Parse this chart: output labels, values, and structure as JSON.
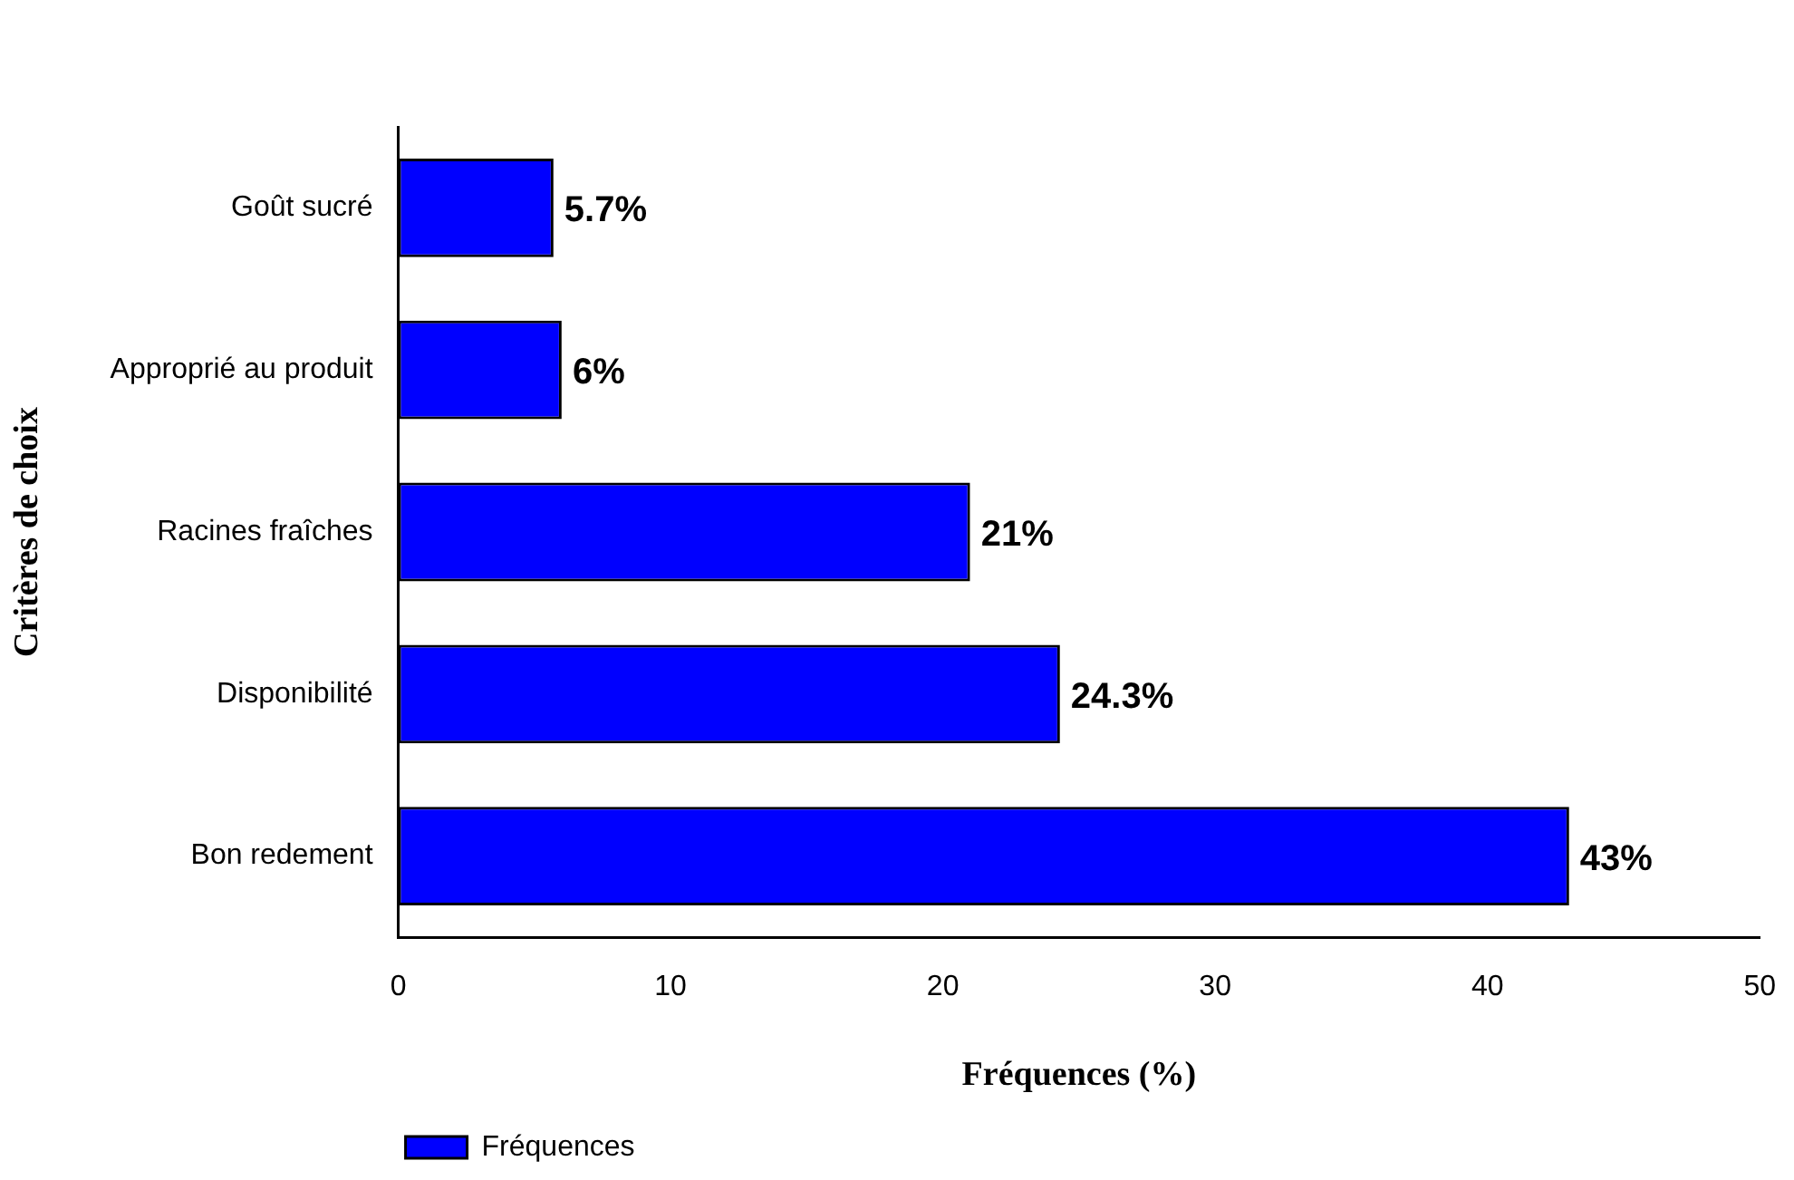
{
  "chart_data": {
    "type": "bar",
    "orientation": "horizontal",
    "xlabel": "Fréquences (%)",
    "ylabel": "Critères de choix",
    "categories": [
      "Goût sucré",
      "Approprié au produit",
      "Racines fraîches",
      "Disponibilité",
      "Bon redement"
    ],
    "series": [
      {
        "name": "Fréquences",
        "color": "#0000ff",
        "values": [
          5.7,
          6,
          21,
          24.3,
          43
        ],
        "value_labels": [
          "5.7%",
          "6%",
          "21%",
          "24.3%",
          "43%"
        ]
      }
    ],
    "xlim": [
      0,
      50
    ],
    "xticks": [
      0,
      10,
      20,
      30,
      40,
      50
    ],
    "grid": false,
    "legend": "bottom left"
  }
}
